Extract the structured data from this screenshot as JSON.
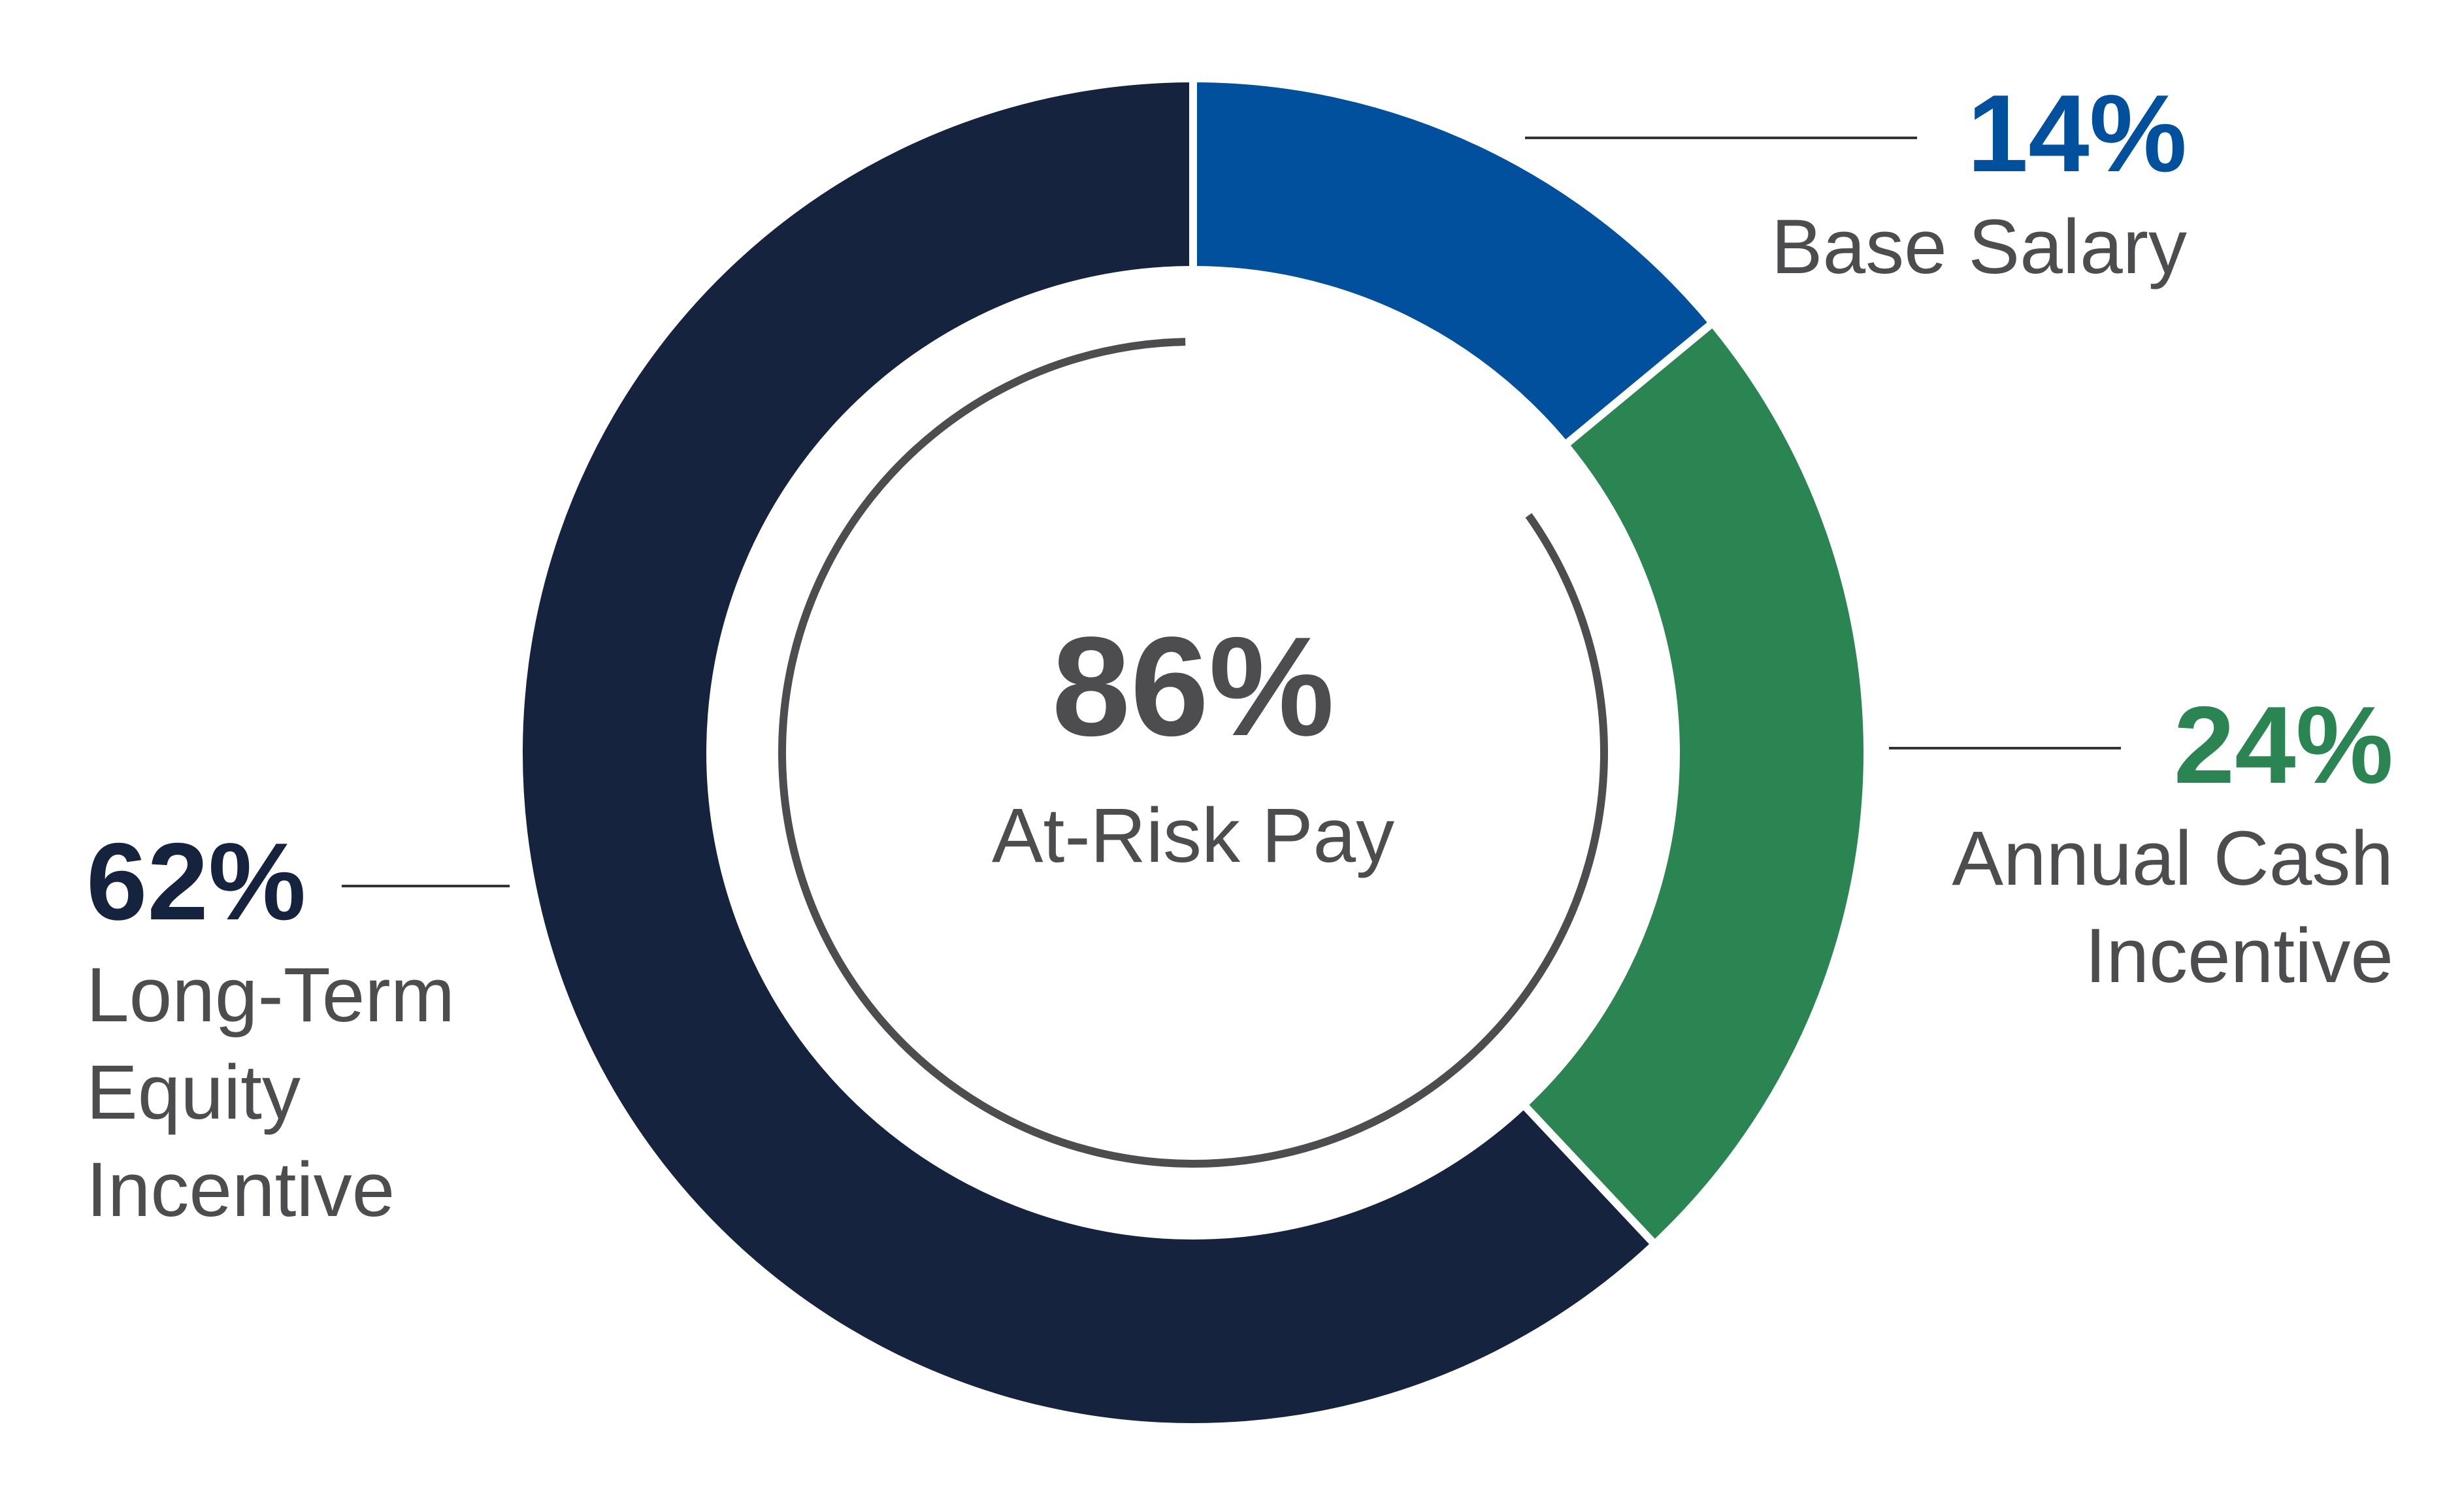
{
  "chart_data": {
    "type": "donut",
    "categories": [
      "Base Salary",
      "Annual Cash Incentive",
      "Long-Term Equity Incentive"
    ],
    "values": [
      14,
      24,
      62
    ],
    "value_labels": [
      "14%",
      "24%",
      "62%"
    ],
    "colors": [
      "#00509e",
      "#2b8553",
      "#15233f"
    ],
    "center": {
      "value": 86,
      "label": "86%",
      "text": "At-Risk Pay"
    }
  }
}
